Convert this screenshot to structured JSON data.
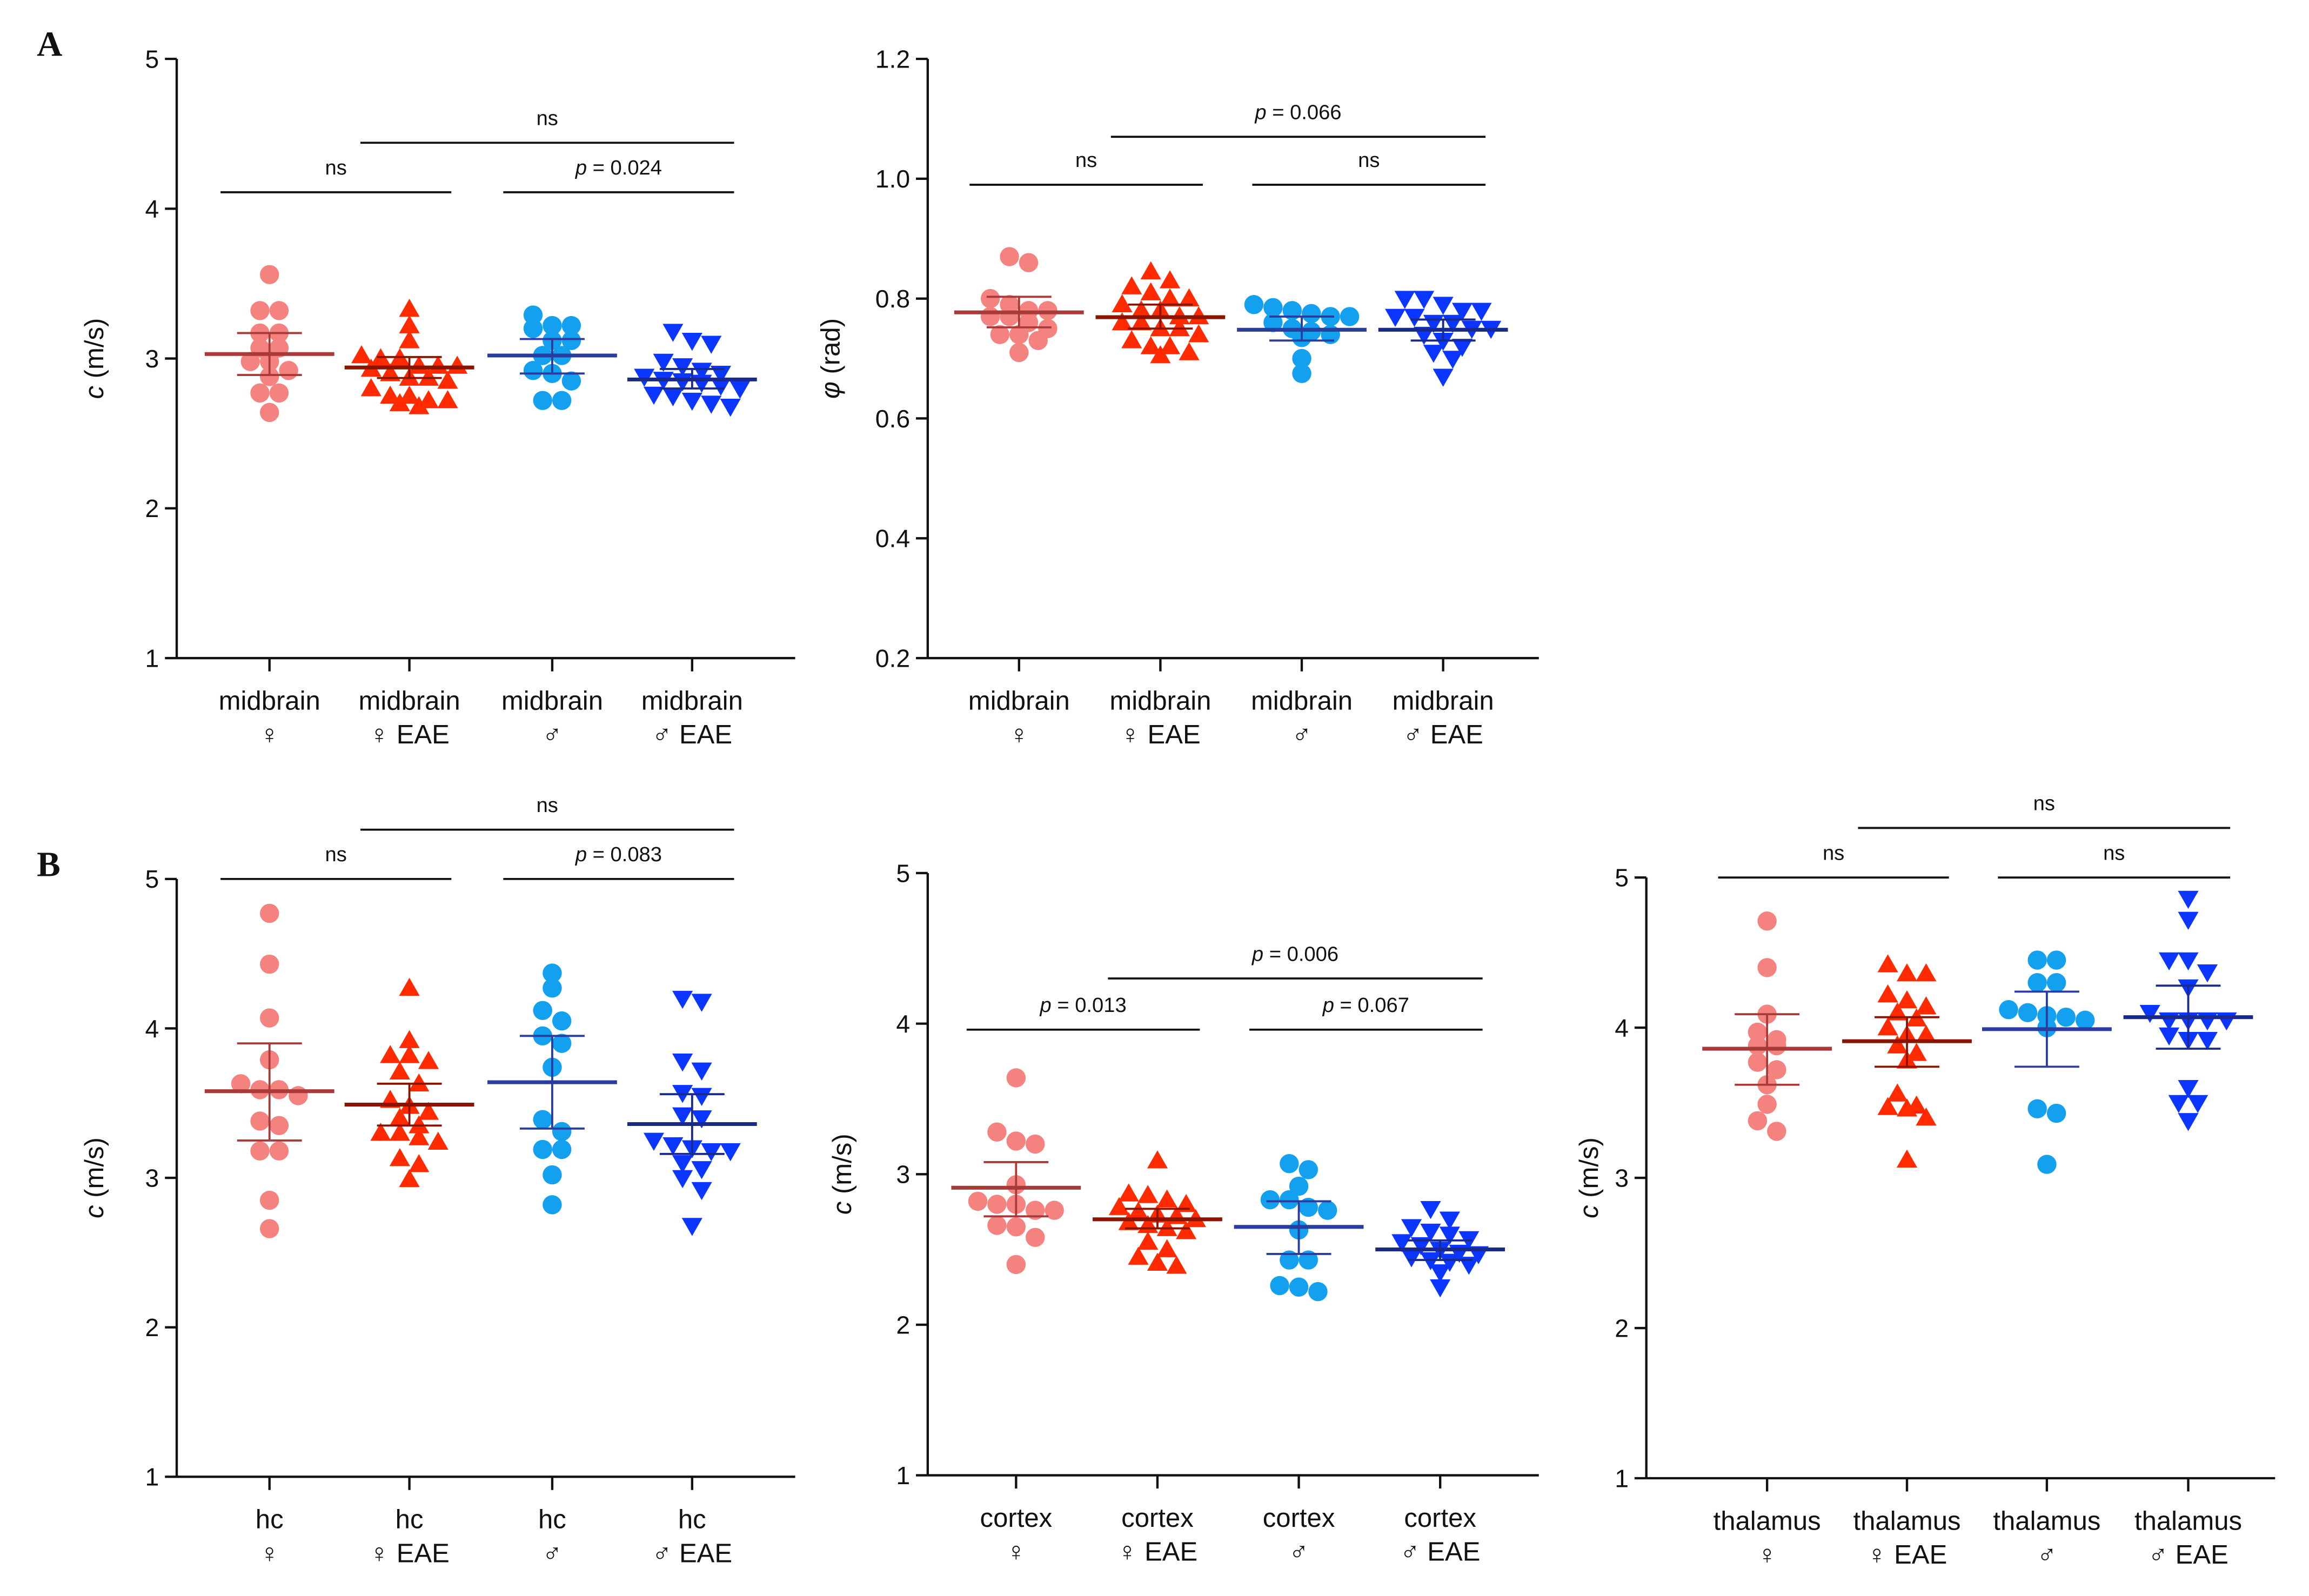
{
  "chart_data": [
    {
      "panel_letter": "A",
      "type": "scatter",
      "ylabel": {
        "var": "c",
        "unit": " (m/s)"
      },
      "ylim": [
        1,
        5
      ],
      "yticks": [
        "1",
        "2",
        "3",
        "4",
        "5"
      ],
      "categories": [
        [
          "midbrain",
          "♀"
        ],
        [
          "midbrain",
          "♀ EAE"
        ],
        [
          "midbrain",
          "♂"
        ],
        [
          "midbrain",
          "♂ EAE"
        ]
      ],
      "groups": [
        {
          "values": [
            3.56,
            3.32,
            3.32,
            3.17,
            3.17,
            3.07,
            3.07,
            2.98,
            2.98,
            2.92,
            2.88,
            2.77,
            2.77,
            2.64
          ],
          "mean": 3.03,
          "ci": [
            2.89,
            3.17
          ]
        },
        {
          "values": [
            3.33,
            3.22,
            3.12,
            3.02,
            3.0,
            3.0,
            2.95,
            2.95,
            2.95,
            2.93,
            2.9,
            2.87,
            2.87,
            2.85,
            2.8,
            2.75,
            2.75,
            2.72,
            2.72,
            2.7,
            2.68
          ],
          "mean": 2.94,
          "ci": [
            2.87,
            3.01
          ]
        },
        {
          "values": [
            3.29,
            3.22,
            3.22,
            3.2,
            3.12,
            3.12,
            3.02,
            3.02,
            2.92,
            2.9,
            2.85,
            2.72,
            2.72
          ],
          "mean": 3.02,
          "ci": [
            2.9,
            3.13
          ]
        },
        {
          "values": [
            3.18,
            3.12,
            3.1,
            2.98,
            2.95,
            2.92,
            2.9,
            2.88,
            2.86,
            2.85,
            2.84,
            2.82,
            2.8,
            2.76,
            2.75,
            2.72,
            2.7,
            2.68
          ],
          "mean": 2.86,
          "ci": [
            2.8,
            2.93
          ]
        }
      ],
      "comparisons": [
        {
          "from": 0,
          "to": 1,
          "y": 4.11,
          "label": "ns"
        },
        {
          "from": 2,
          "to": 3,
          "y": 4.11,
          "label": "p = 0.024"
        },
        {
          "from": 1,
          "to": 3,
          "y": 4.44,
          "label": "ns"
        }
      ]
    },
    {
      "panel_letter": "",
      "type": "scatter",
      "ylabel": {
        "var": "φ",
        "unit": " (rad)"
      },
      "ylim": [
        0.2,
        1.2
      ],
      "yticks": [
        "0.2",
        "0.4",
        "0.6",
        "0.8",
        "1.0",
        "1.2"
      ],
      "categories": [
        [
          "midbrain",
          "♀"
        ],
        [
          "midbrain",
          "♀ EAE"
        ],
        [
          "midbrain",
          "♂"
        ],
        [
          "midbrain",
          "♂ EAE"
        ]
      ],
      "groups": [
        {
          "values": [
            0.87,
            0.86,
            0.8,
            0.79,
            0.78,
            0.78,
            0.77,
            0.77,
            0.76,
            0.75,
            0.74,
            0.74,
            0.73,
            0.71
          ],
          "mean": 0.777,
          "ci": [
            0.752,
            0.803
          ]
        },
        {
          "values": [
            0.845,
            0.83,
            0.82,
            0.81,
            0.8,
            0.8,
            0.79,
            0.78,
            0.78,
            0.77,
            0.77,
            0.76,
            0.76,
            0.75,
            0.75,
            0.74,
            0.73,
            0.72,
            0.72,
            0.71,
            0.705
          ],
          "mean": 0.769,
          "ci": [
            0.75,
            0.79
          ]
        },
        {
          "values": [
            0.79,
            0.785,
            0.78,
            0.775,
            0.77,
            0.77,
            0.76,
            0.75,
            0.745,
            0.74,
            0.735,
            0.7,
            0.675
          ],
          "mean": 0.748,
          "ci": [
            0.73,
            0.77
          ]
        },
        {
          "values": [
            0.8,
            0.8,
            0.79,
            0.78,
            0.78,
            0.77,
            0.77,
            0.76,
            0.76,
            0.75,
            0.75,
            0.74,
            0.73,
            0.72,
            0.71,
            0.7,
            0.67
          ],
          "mean": 0.748,
          "ci": [
            0.73,
            0.765
          ]
        }
      ],
      "comparisons": [
        {
          "from": 0,
          "to": 1,
          "y": 0.99,
          "label": "ns"
        },
        {
          "from": 2,
          "to": 3,
          "y": 0.99,
          "label": "ns"
        },
        {
          "from": 1,
          "to": 3,
          "y": 1.07,
          "label": "p = 0.066"
        }
      ]
    },
    {
      "panel_letter": "B",
      "type": "scatter",
      "ylabel": {
        "var": "c",
        "unit": " (m/s)"
      },
      "ylim": [
        1,
        5
      ],
      "yticks": [
        "1",
        "2",
        "3",
        "4",
        "5"
      ],
      "categories": [
        [
          "hc",
          "♀"
        ],
        [
          "hc",
          "♀ EAE"
        ],
        [
          "hc",
          "♂"
        ],
        [
          "hc",
          "♂ EAE"
        ]
      ],
      "groups": [
        {
          "values": [
            4.77,
            4.43,
            4.07,
            3.79,
            3.63,
            3.59,
            3.59,
            3.55,
            3.38,
            3.35,
            3.18,
            3.18,
            2.85,
            2.66
          ],
          "mean": 3.58,
          "ci": [
            3.25,
            3.9
          ]
        },
        {
          "values": [
            4.27,
            3.92,
            3.82,
            3.82,
            3.78,
            3.71,
            3.63,
            3.52,
            3.48,
            3.44,
            3.4,
            3.35,
            3.3,
            3.3,
            3.27,
            3.24,
            3.13,
            3.09,
            2.99
          ],
          "mean": 3.49,
          "ci": [
            3.35,
            3.63
          ]
        },
        {
          "values": [
            4.37,
            4.27,
            4.12,
            4.05,
            3.95,
            3.9,
            3.74,
            3.39,
            3.31,
            3.19,
            3.19,
            3.02,
            2.82
          ],
          "mean": 3.64,
          "ci": [
            3.33,
            3.95
          ]
        },
        {
          "values": [
            4.2,
            4.18,
            3.78,
            3.72,
            3.57,
            3.55,
            3.42,
            3.4,
            3.25,
            3.22,
            3.2,
            3.18,
            3.18,
            3.1,
            3.06,
            3.0,
            2.92,
            2.68
          ],
          "mean": 3.36,
          "ci": [
            3.16,
            3.56
          ]
        }
      ],
      "comparisons": [
        {
          "from": 0,
          "to": 1,
          "y": 5.0,
          "label": "ns"
        },
        {
          "from": 2,
          "to": 3,
          "y": 5.0,
          "label": "p = 0.083"
        },
        {
          "from": 1,
          "to": 3,
          "y": 5.33,
          "label": "ns"
        }
      ]
    },
    {
      "panel_letter": "",
      "type": "scatter",
      "ylabel": {
        "var": "c",
        "unit": " (m/s)"
      },
      "ylim": [
        1,
        5
      ],
      "yticks": [
        "1",
        "2",
        "3",
        "4",
        "5"
      ],
      "categories": [
        [
          "cortex",
          "♀"
        ],
        [
          "cortex",
          "♀ EAE"
        ],
        [
          "cortex",
          "♂"
        ],
        [
          "cortex",
          "♂ EAE"
        ]
      ],
      "groups": [
        {
          "values": [
            3.64,
            3.28,
            3.22,
            3.2,
            2.93,
            2.82,
            2.8,
            2.8,
            2.76,
            2.76,
            2.66,
            2.65,
            2.58,
            2.4
          ],
          "mean": 2.91,
          "ci": [
            2.72,
            3.08
          ]
        },
        {
          "values": [
            3.09,
            2.87,
            2.86,
            2.83,
            2.8,
            2.78,
            2.75,
            2.73,
            2.72,
            2.7,
            2.68,
            2.66,
            2.64,
            2.62,
            2.55,
            2.5,
            2.45,
            2.41,
            2.39
          ],
          "mean": 2.7,
          "ci": [
            2.64,
            2.77
          ]
        },
        {
          "values": [
            3.07,
            3.03,
            2.92,
            2.83,
            2.83,
            2.78,
            2.76,
            2.63,
            2.43,
            2.43,
            2.26,
            2.25,
            2.22
          ],
          "mean": 2.65,
          "ci": [
            2.47,
            2.82
          ]
        },
        {
          "values": [
            2.77,
            2.7,
            2.65,
            2.62,
            2.6,
            2.57,
            2.55,
            2.53,
            2.5,
            2.48,
            2.47,
            2.45,
            2.43,
            2.42,
            2.4,
            2.35,
            2.25
          ],
          "mean": 2.5,
          "ci": [
            2.43,
            2.56
          ]
        }
      ],
      "comparisons": [
        {
          "from": 0,
          "to": 1,
          "y": 3.96,
          "label": "p = 0.013"
        },
        {
          "from": 2,
          "to": 3,
          "y": 3.96,
          "label": "p = 0.067"
        },
        {
          "from": 1,
          "to": 3,
          "y": 4.3,
          "label": "p = 0.006"
        }
      ]
    },
    {
      "panel_letter": "",
      "type": "scatter",
      "ylabel": {
        "var": "c",
        "unit": " (m/s)"
      },
      "ylim": [
        1,
        5
      ],
      "yticks": [
        "1",
        "2",
        "3",
        "4",
        "5"
      ],
      "categories": [
        [
          "thalamus",
          "♀"
        ],
        [
          "thalamus",
          "♀ EAE"
        ],
        [
          "thalamus",
          "♂"
        ],
        [
          "thalamus",
          "♂ EAE"
        ]
      ],
      "groups": [
        {
          "values": [
            4.71,
            4.4,
            4.09,
            3.97,
            3.92,
            3.88,
            3.88,
            3.77,
            3.72,
            3.62,
            3.49,
            3.38,
            3.31
          ],
          "mean": 3.86,
          "ci": [
            3.62,
            4.09
          ]
        },
        {
          "values": [
            4.42,
            4.36,
            4.36,
            4.22,
            4.18,
            4.14,
            4.1,
            4.06,
            4.0,
            3.95,
            3.95,
            3.88,
            3.83,
            3.78,
            3.56,
            3.48,
            3.47,
            3.46,
            3.4,
            3.12
          ],
          "mean": 3.91,
          "ci": [
            3.74,
            4.07
          ]
        },
        {
          "values": [
            4.45,
            4.45,
            4.3,
            4.3,
            4.12,
            4.1,
            4.08,
            4.07,
            4.05,
            4.0,
            3.46,
            3.43,
            3.09
          ],
          "mean": 3.99,
          "ci": [
            3.74,
            4.24
          ]
        },
        {
          "values": [
            4.86,
            4.72,
            4.45,
            4.45,
            4.37,
            4.27,
            4.1,
            4.05,
            4.05,
            4.05,
            4.05,
            3.95,
            3.92,
            3.92,
            3.6,
            3.5,
            3.5,
            3.38
          ],
          "mean": 4.07,
          "ci": [
            3.86,
            4.28
          ]
        }
      ],
      "comparisons": [
        {
          "from": 0,
          "to": 1,
          "y": 5.0,
          "label": "ns"
        },
        {
          "from": 2,
          "to": 3,
          "y": 5.0,
          "label": "ns"
        },
        {
          "from": 1,
          "to": 3,
          "y": 5.33,
          "label": "ns"
        }
      ]
    }
  ],
  "series_style": [
    {
      "name": "female",
      "marker": "circle",
      "color": "#f4827f",
      "line_color": "#a83a3a"
    },
    {
      "name": "female EAE",
      "marker": "triangle-up",
      "color": "#ff2a00",
      "line_color": "#8a1400"
    },
    {
      "name": "male",
      "marker": "circle",
      "color": "#12a0ef",
      "line_color": "#2a3c9e"
    },
    {
      "name": "male EAE",
      "marker": "triangle-down",
      "color": "#0a36ff",
      "line_color": "#1a2a8a"
    }
  ]
}
